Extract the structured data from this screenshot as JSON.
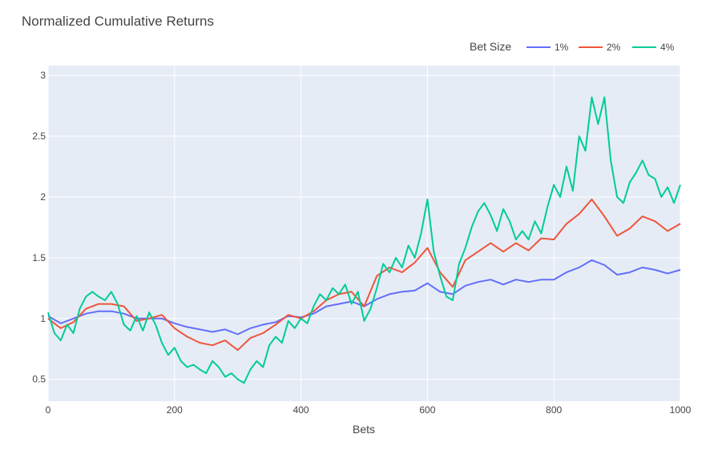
{
  "chart_data": {
    "type": "line",
    "title": "Normalized Cumulative Returns",
    "xlabel": "Bets",
    "ylabel": "",
    "xlim": [
      0,
      1000
    ],
    "ylim": [
      0.32,
      3.08
    ],
    "xticks": [
      0,
      200,
      400,
      600,
      800,
      1000
    ],
    "yticks": [
      0.5,
      1,
      1.5,
      2,
      2.5,
      3
    ],
    "grid": true,
    "legend": {
      "title": "Bet Size",
      "position": "top-right",
      "orientation": "horizontal"
    },
    "series": [
      {
        "name": "1%",
        "color": "#636efa",
        "x": [
          0,
          20,
          40,
          60,
          80,
          100,
          120,
          140,
          160,
          180,
          200,
          220,
          240,
          260,
          280,
          300,
          320,
          340,
          360,
          380,
          400,
          420,
          440,
          460,
          480,
          500,
          520,
          540,
          560,
          580,
          600,
          620,
          640,
          660,
          680,
          700,
          720,
          740,
          760,
          780,
          800,
          820,
          840,
          860,
          880,
          900,
          920,
          940,
          960,
          980,
          1000
        ],
        "y": [
          1.02,
          0.96,
          1.0,
          1.04,
          1.06,
          1.06,
          1.04,
          1.0,
          1.0,
          1.0,
          0.96,
          0.93,
          0.91,
          0.89,
          0.91,
          0.87,
          0.92,
          0.95,
          0.97,
          1.02,
          1.01,
          1.04,
          1.1,
          1.12,
          1.14,
          1.1,
          1.16,
          1.2,
          1.22,
          1.23,
          1.29,
          1.22,
          1.2,
          1.27,
          1.3,
          1.32,
          1.28,
          1.32,
          1.3,
          1.32,
          1.32,
          1.38,
          1.42,
          1.48,
          1.44,
          1.36,
          1.38,
          1.42,
          1.4,
          1.37,
          1.4
        ]
      },
      {
        "name": "2%",
        "color": "#ef553b",
        "x": [
          0,
          20,
          40,
          60,
          80,
          100,
          120,
          140,
          160,
          180,
          200,
          220,
          240,
          260,
          280,
          300,
          320,
          340,
          360,
          380,
          400,
          420,
          440,
          460,
          480,
          500,
          520,
          540,
          560,
          580,
          600,
          620,
          640,
          660,
          680,
          700,
          720,
          740,
          760,
          780,
          800,
          820,
          840,
          860,
          880,
          900,
          920,
          940,
          960,
          980,
          1000
        ],
        "y": [
          1.0,
          0.92,
          0.97,
          1.08,
          1.12,
          1.12,
          1.1,
          0.98,
          1.0,
          1.03,
          0.92,
          0.85,
          0.8,
          0.78,
          0.82,
          0.74,
          0.84,
          0.88,
          0.95,
          1.03,
          1.0,
          1.06,
          1.15,
          1.2,
          1.22,
          1.1,
          1.35,
          1.42,
          1.38,
          1.46,
          1.58,
          1.38,
          1.26,
          1.48,
          1.55,
          1.62,
          1.55,
          1.62,
          1.56,
          1.66,
          1.65,
          1.78,
          1.86,
          1.98,
          1.84,
          1.68,
          1.74,
          1.84,
          1.8,
          1.72,
          1.78
        ]
      },
      {
        "name": "4%",
        "color": "#00cc96",
        "x": [
          0,
          10,
          20,
          30,
          40,
          50,
          60,
          70,
          80,
          90,
          100,
          110,
          120,
          130,
          140,
          150,
          160,
          170,
          180,
          190,
          200,
          210,
          220,
          230,
          240,
          250,
          260,
          270,
          280,
          290,
          300,
          310,
          320,
          330,
          340,
          350,
          360,
          370,
          380,
          390,
          400,
          410,
          420,
          430,
          440,
          450,
          460,
          470,
          480,
          490,
          500,
          510,
          520,
          530,
          540,
          550,
          560,
          570,
          580,
          590,
          600,
          610,
          620,
          630,
          640,
          650,
          660,
          670,
          680,
          690,
          700,
          710,
          720,
          730,
          740,
          750,
          760,
          770,
          780,
          790,
          800,
          810,
          820,
          830,
          840,
          850,
          860,
          870,
          880,
          890,
          900,
          910,
          920,
          930,
          940,
          950,
          960,
          970,
          980,
          990,
          1000
        ],
        "y": [
          1.05,
          0.88,
          0.82,
          0.95,
          0.88,
          1.08,
          1.18,
          1.22,
          1.18,
          1.15,
          1.22,
          1.12,
          0.95,
          0.9,
          1.02,
          0.9,
          1.05,
          0.95,
          0.8,
          0.7,
          0.76,
          0.65,
          0.6,
          0.62,
          0.58,
          0.55,
          0.65,
          0.6,
          0.52,
          0.55,
          0.5,
          0.47,
          0.58,
          0.65,
          0.6,
          0.78,
          0.85,
          0.8,
          0.98,
          0.92,
          1.0,
          0.96,
          1.1,
          1.2,
          1.15,
          1.25,
          1.2,
          1.28,
          1.12,
          1.22,
          0.98,
          1.08,
          1.25,
          1.45,
          1.38,
          1.5,
          1.42,
          1.6,
          1.5,
          1.7,
          1.98,
          1.55,
          1.35,
          1.18,
          1.15,
          1.45,
          1.58,
          1.75,
          1.88,
          1.95,
          1.85,
          1.72,
          1.9,
          1.8,
          1.65,
          1.72,
          1.65,
          1.8,
          1.7,
          1.92,
          2.1,
          2.0,
          2.25,
          2.05,
          2.5,
          2.38,
          2.82,
          2.6,
          2.82,
          2.3,
          2.0,
          1.95,
          2.12,
          2.2,
          2.3,
          2.18,
          2.15,
          2.0,
          2.08,
          1.95,
          2.1
        ]
      }
    ]
  }
}
